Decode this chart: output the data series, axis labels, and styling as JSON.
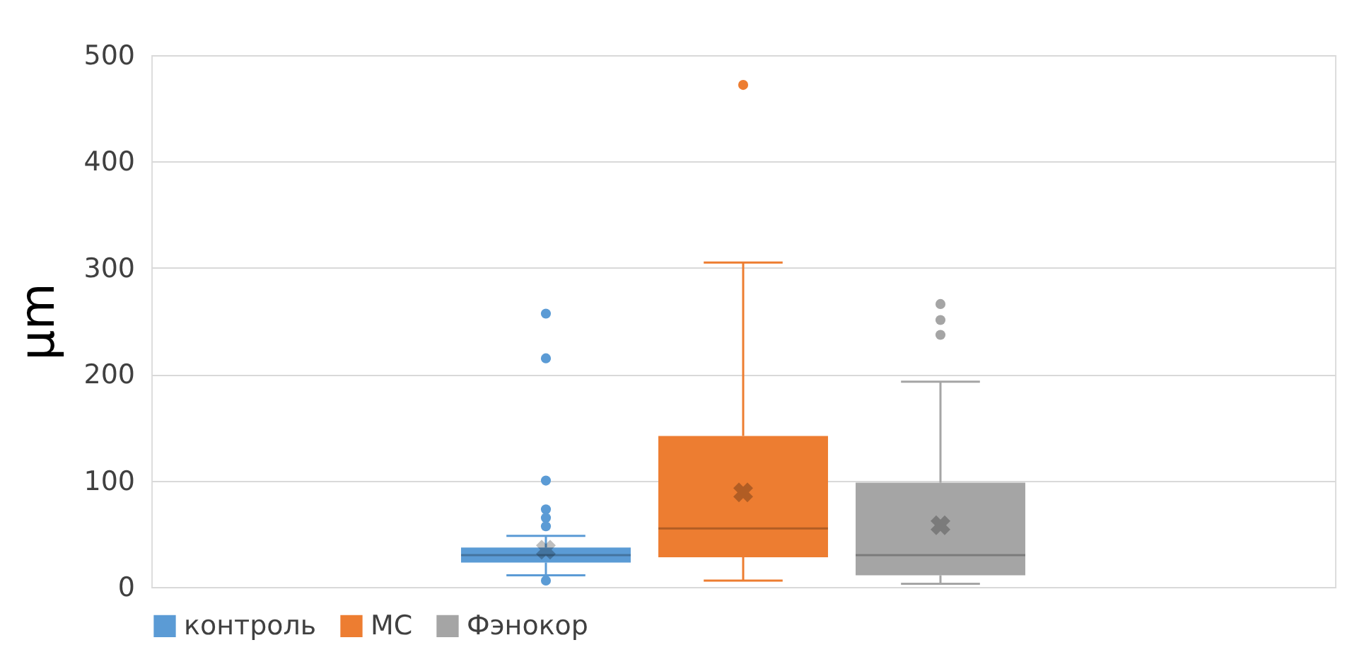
{
  "chart_data": {
    "type": "box",
    "ylabel": "μm",
    "categories": [
      null
    ],
    "series": [
      {
        "name": "контроль",
        "color": "#5b9bd5",
        "boxes": [
          {
            "low": 11,
            "q1": 23,
            "median": 30,
            "q3": 37,
            "high": 48,
            "mean": 35,
            "outliers": [
              257,
              215,
              100,
              73,
              65,
              57,
              6
            ]
          }
        ]
      },
      {
        "name": "МС",
        "color": "#ed7d31",
        "boxes": [
          {
            "low": 6,
            "q1": 28,
            "median": 55,
            "q3": 142,
            "high": 305,
            "mean": 89,
            "outliers": [
              472
            ]
          }
        ]
      },
      {
        "name": "Фэнокор",
        "color": "#a5a5a5",
        "boxes": [
          {
            "low": 3,
            "q1": 11,
            "median": 30,
            "q3": 98,
            "high": 193,
            "mean": 58,
            "outliers": [
              266,
              251,
              237
            ]
          }
        ]
      }
    ],
    "ylim": [
      0,
      500
    ],
    "yticks": [
      0,
      100,
      200,
      300,
      400,
      500
    ],
    "grid": "y",
    "legend": "bottom",
    "marker": "circle"
  }
}
